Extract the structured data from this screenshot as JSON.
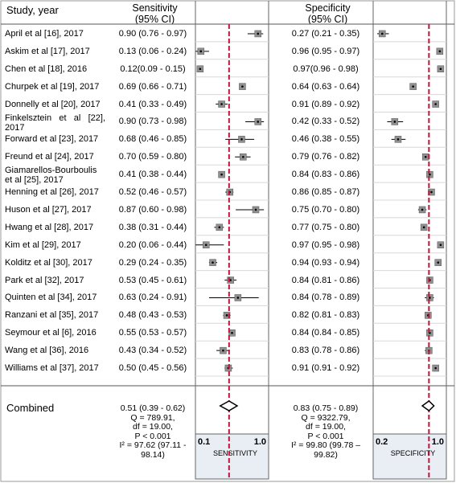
{
  "headers": {
    "study": "Study, year",
    "sensitivity": "Sensitivity",
    "sensitivity_ci": "(95% CI)",
    "specificity": "Specificity",
    "specificity_ci": "(95% CI)"
  },
  "chart_data": {
    "type": "forest",
    "rows": [
      {
        "study": "April et al [16], 2017",
        "sens": 0.9,
        "sens_lo": 0.76,
        "sens_hi": 0.97,
        "sens_text": "0.90 (0.76 - 0.97)",
        "spec": 0.27,
        "spec_lo": 0.21,
        "spec_hi": 0.35,
        "spec_text": "0.27 (0.21 - 0.35)"
      },
      {
        "study": "Askim et al [17], 2017",
        "sens": 0.13,
        "sens_lo": 0.06,
        "sens_hi": 0.24,
        "sens_text": "0.13 (0.06 - 0.24)",
        "spec": 0.96,
        "spec_lo": 0.95,
        "spec_hi": 0.97,
        "spec_text": "0.96 (0.95 - 0.97)"
      },
      {
        "study": "Chen et al [18], 2016",
        "sens": 0.12,
        "sens_lo": 0.09,
        "sens_hi": 0.15,
        "sens_text": "0.12(0.09 - 0.15)",
        "spec": 0.97,
        "spec_lo": 0.96,
        "spec_hi": 0.98,
        "spec_text": "0.97(0.96 - 0.98)"
      },
      {
        "study": "Churpek et al [19], 2017",
        "sens": 0.69,
        "sens_lo": 0.66,
        "sens_hi": 0.71,
        "sens_text": "0.69 (0.66 - 0.71)",
        "spec": 0.64,
        "spec_lo": 0.63,
        "spec_hi": 0.64,
        "spec_text": "0.64 (0.63 - 0.64)"
      },
      {
        "study": "Donnelly et al [20], 2017",
        "sens": 0.41,
        "sens_lo": 0.33,
        "sens_hi": 0.49,
        "sens_text": "0.41 (0.33 - 0.49)",
        "spec": 0.91,
        "spec_lo": 0.89,
        "spec_hi": 0.92,
        "spec_text": "0.91 (0.89 - 0.92)"
      },
      {
        "study": "Finkelsztein et al [22], 2017",
        "sens": 0.9,
        "sens_lo": 0.73,
        "sens_hi": 0.98,
        "sens_text": "0.90 (0.73 - 0.98)",
        "spec": 0.42,
        "spec_lo": 0.33,
        "spec_hi": 0.52,
        "spec_text": "0.42 (0.33 - 0.52)"
      },
      {
        "study": "Forward et al [23], 2017",
        "sens": 0.68,
        "sens_lo": 0.46,
        "sens_hi": 0.85,
        "sens_text": "0.68 (0.46 - 0.85)",
        "spec": 0.46,
        "spec_lo": 0.38,
        "spec_hi": 0.55,
        "spec_text": "0.46 (0.38 - 0.55)"
      },
      {
        "study": "Freund et al [24], 2017",
        "sens": 0.7,
        "sens_lo": 0.59,
        "sens_hi": 0.8,
        "sens_text": "0.70 (0.59 - 0.80)",
        "spec": 0.79,
        "spec_lo": 0.76,
        "spec_hi": 0.82,
        "spec_text": "0.79 (0.76 - 0.82)"
      },
      {
        "study": "Giamarellos-Bourboulis et al [25], 2017",
        "sens": 0.41,
        "sens_lo": 0.38,
        "sens_hi": 0.44,
        "sens_text": "0.41 (0.38 - 0.44)",
        "spec": 0.84,
        "spec_lo": 0.83,
        "spec_hi": 0.86,
        "spec_text": "0.84 (0.83 - 0.86)"
      },
      {
        "study": "Henning et al [26], 2017",
        "sens": 0.52,
        "sens_lo": 0.46,
        "sens_hi": 0.57,
        "sens_text": "0.52 (0.46 - 0.57)",
        "spec": 0.86,
        "spec_lo": 0.85,
        "spec_hi": 0.87,
        "spec_text": "0.86 (0.85 - 0.87)"
      },
      {
        "study": "Huson et al [27], 2017",
        "sens": 0.87,
        "sens_lo": 0.6,
        "sens_hi": 0.98,
        "sens_text": "0.87 (0.60 - 0.98)",
        "spec": 0.75,
        "spec_lo": 0.7,
        "spec_hi": 0.8,
        "spec_text": "0.75 (0.70 - 0.80)"
      },
      {
        "study": "Hwang et al [28], 2017",
        "sens": 0.38,
        "sens_lo": 0.31,
        "sens_hi": 0.44,
        "sens_text": "0.38 (0.31 - 0.44)",
        "spec": 0.77,
        "spec_lo": 0.75,
        "spec_hi": 0.8,
        "spec_text": "0.77 (0.75 - 0.80)"
      },
      {
        "study": "Kim et al [29], 2017",
        "sens": 0.2,
        "sens_lo": 0.06,
        "sens_hi": 0.44,
        "sens_text": "0.20 (0.06 - 0.44)",
        "spec": 0.97,
        "spec_lo": 0.95,
        "spec_hi": 0.98,
        "spec_text": "0.97 (0.95 - 0.98)"
      },
      {
        "study": "Kolditz et al [30], 2017",
        "sens": 0.29,
        "sens_lo": 0.24,
        "sens_hi": 0.35,
        "sens_text": "0.29 (0.24 - 0.35)",
        "spec": 0.94,
        "spec_lo": 0.93,
        "spec_hi": 0.94,
        "spec_text": "0.94 (0.93 - 0.94)"
      },
      {
        "study": "Park et al [32], 2017",
        "sens": 0.53,
        "sens_lo": 0.45,
        "sens_hi": 0.61,
        "sens_text": "0.53 (0.45 - 0.61)",
        "spec": 0.84,
        "spec_lo": 0.81,
        "spec_hi": 0.86,
        "spec_text": "0.84 (0.81 - 0.86)"
      },
      {
        "study": "Quinten et al [34], 2017",
        "sens": 0.63,
        "sens_lo": 0.24,
        "sens_hi": 0.91,
        "sens_text": "0.63 (0.24 - 0.91)",
        "spec": 0.84,
        "spec_lo": 0.78,
        "spec_hi": 0.89,
        "spec_text": "0.84 (0.78 - 0.89)"
      },
      {
        "study": "Ranzani et al [35], 2017",
        "sens": 0.48,
        "sens_lo": 0.43,
        "sens_hi": 0.53,
        "sens_text": "0.48 (0.43 - 0.53)",
        "spec": 0.82,
        "spec_lo": 0.81,
        "spec_hi": 0.83,
        "spec_text": "0.82 (0.81 - 0.83)"
      },
      {
        "study": "Seymour et al [6], 2016",
        "sens": 0.55,
        "sens_lo": 0.53,
        "sens_hi": 0.57,
        "sens_text": "0.55 (0.53 - 0.57)",
        "spec": 0.84,
        "spec_lo": 0.84,
        "spec_hi": 0.85,
        "spec_text": "0.84 (0.84 - 0.85)"
      },
      {
        "study": "Wang et al [36], 2016",
        "sens": 0.43,
        "sens_lo": 0.34,
        "sens_hi": 0.52,
        "sens_text": "0.43 (0.34 - 0.52)",
        "spec": 0.83,
        "spec_lo": 0.78,
        "spec_hi": 0.86,
        "spec_text": "0.83 (0.78 - 0.86)"
      },
      {
        "study": "Williams et al [37], 2017",
        "sens": 0.5,
        "sens_lo": 0.45,
        "sens_hi": 0.56,
        "sens_text": "0.50 (0.45 - 0.56)",
        "spec": 0.91,
        "spec_lo": 0.91,
        "spec_hi": 0.92,
        "spec_text": "0.91 (0.91 - 0.92)"
      }
    ],
    "combined": {
      "label": "Combined",
      "sens": 0.51,
      "sens_lo": 0.39,
      "sens_hi": 0.62,
      "sens_stats": [
        "0.51 (0.39 - 0.62)",
        "Q = 789.91,",
        "df = 19.00,",
        "P < 0.001",
        "I² = 97.62 (97.11 -",
        "98.14)"
      ],
      "spec": 0.83,
      "spec_lo": 0.75,
      "spec_hi": 0.89,
      "spec_stats": [
        "0.83 (0.75 - 0.89)",
        "Q = 9322.79,",
        "df = 19.00,",
        "P < 0.001",
        "I² = 99.80 (99.78 –",
        "99.82)"
      ]
    },
    "sensitivity_axis": {
      "label": "SENSITIVITY",
      "ticks": [
        "0.1",
        "1.0"
      ],
      "range": [
        0.1,
        1.0
      ]
    },
    "specificity_axis": {
      "label": "SPECIFICITY",
      "ticks": [
        "0.2",
        "1.0"
      ],
      "range": [
        0.2,
        1.0
      ]
    },
    "colors": {
      "reference_line": "#c0143c",
      "marker": "#909090",
      "grid": "#d8d8d8",
      "axis_bg": "#e8eef3"
    }
  }
}
